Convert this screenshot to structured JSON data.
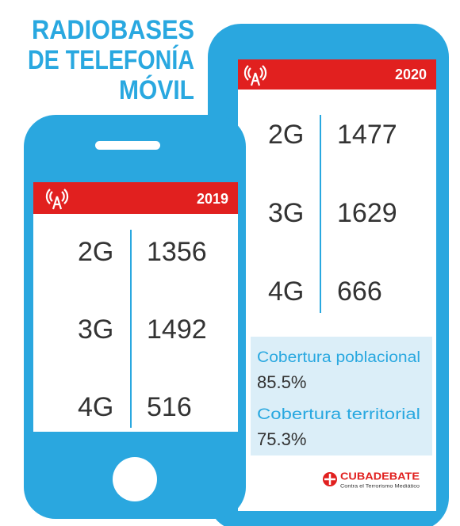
{
  "title": [
    "RADIOBASES",
    "DE TELEFONÍA",
    "MÓVIL"
  ],
  "phones": [
    {
      "year": "2019",
      "rows": [
        {
          "tech": "2G",
          "value": 1356
        },
        {
          "tech": "3G",
          "value": 1492
        },
        {
          "tech": "4G",
          "value": 516
        }
      ]
    },
    {
      "year": "2020",
      "rows": [
        {
          "tech": "2G",
          "value": 1477
        },
        {
          "tech": "3G",
          "value": 1629
        },
        {
          "tech": "4G",
          "value": 666
        }
      ],
      "coverage": [
        {
          "label": "Cobertura poblacional",
          "value": "85.5%"
        },
        {
          "label": "Cobertura territorial",
          "value": "75.3%"
        }
      ]
    }
  ],
  "logo": {
    "name": "CUBADEBATE",
    "tagline": "Contra el Terrorismo Mediático"
  }
}
